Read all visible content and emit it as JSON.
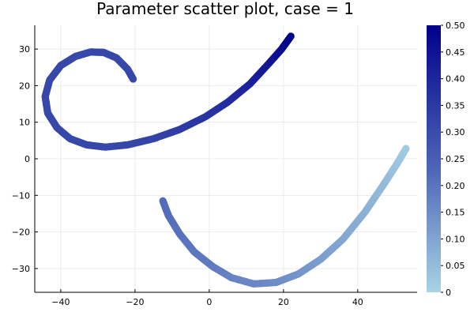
{
  "chart_data": {
    "type": "scatter",
    "title": "Parameter scatter plot, case = 1",
    "xlabel": "",
    "ylabel": "",
    "xlim": [
      -47,
      56
    ],
    "ylim": [
      -36.5,
      36.5
    ],
    "xticks": [
      -40,
      -20,
      0,
      20,
      40
    ],
    "yticks": [
      -30,
      -20,
      -10,
      0,
      10,
      20,
      30
    ],
    "xtick_labels": [
      "−40",
      "−20",
      "0",
      "20",
      "40"
    ],
    "ytick_labels": [
      "−30",
      "−20",
      "−10",
      "0",
      "10",
      "20",
      "30"
    ],
    "grid": true,
    "colorbar": {
      "range": [
        0,
        0.5
      ],
      "ticks": [
        0,
        0.05,
        0.1,
        0.15,
        0.2,
        0.25,
        0.3,
        0.35,
        0.4,
        0.45,
        0.5
      ],
      "tick_labels": [
        "0",
        "0.05",
        "0.10",
        "0.15",
        "0.20",
        "0.25",
        "0.30",
        "0.35",
        "0.40",
        "0.45",
        "0.50"
      ],
      "color_low": "#A8D4E4",
      "color_mid": "#5068B8",
      "color_high": "#00008B"
    },
    "series": [
      {
        "points": [
          {
            "x": -20.5,
            "y": 21.8,
            "c": 0.31
          },
          {
            "x": -22.0,
            "y": 24.5,
            "c": 0.31
          },
          {
            "x": -25.0,
            "y": 27.6,
            "c": 0.31
          },
          {
            "x": -28.5,
            "y": 29.1,
            "c": 0.31
          },
          {
            "x": -32.0,
            "y": 29.2,
            "c": 0.31
          },
          {
            "x": -36.0,
            "y": 28.0,
            "c": 0.31
          },
          {
            "x": -40.0,
            "y": 25.5,
            "c": 0.31
          },
          {
            "x": -43.0,
            "y": 21.5,
            "c": 0.31
          },
          {
            "x": -44.2,
            "y": 17.0,
            "c": 0.31
          },
          {
            "x": -43.5,
            "y": 12.5,
            "c": 0.31
          },
          {
            "x": -41.0,
            "y": 8.5,
            "c": 0.31
          },
          {
            "x": -37.5,
            "y": 5.5,
            "c": 0.31
          },
          {
            "x": -33.0,
            "y": 3.8,
            "c": 0.31
          },
          {
            "x": -28.0,
            "y": 3.2,
            "c": 0.31
          },
          {
            "x": -22.0,
            "y": 3.8,
            "c": 0.315
          },
          {
            "x": -15.0,
            "y": 5.5,
            "c": 0.32
          },
          {
            "x": -8.0,
            "y": 8.0,
            "c": 0.34
          },
          {
            "x": -1.0,
            "y": 11.5,
            "c": 0.36
          },
          {
            "x": 5.0,
            "y": 15.5,
            "c": 0.38
          },
          {
            "x": 11.0,
            "y": 20.5,
            "c": 0.41
          },
          {
            "x": 16.0,
            "y": 26.0,
            "c": 0.44
          },
          {
            "x": 19.5,
            "y": 30.0,
            "c": 0.47
          },
          {
            "x": 22.0,
            "y": 33.5,
            "c": 0.5
          }
        ]
      },
      {
        "points": [
          {
            "x": -12.5,
            "y": -11.5,
            "c": 0.22
          },
          {
            "x": -11.0,
            "y": -15.5,
            "c": 0.215
          },
          {
            "x": -8.0,
            "y": -20.5,
            "c": 0.205
          },
          {
            "x": -4.0,
            "y": -25.5,
            "c": 0.195
          },
          {
            "x": 1.0,
            "y": -29.5,
            "c": 0.185
          },
          {
            "x": 6.0,
            "y": -32.5,
            "c": 0.17
          },
          {
            "x": 12.0,
            "y": -34.2,
            "c": 0.16
          },
          {
            "x": 18.0,
            "y": -33.8,
            "c": 0.15
          },
          {
            "x": 24.0,
            "y": -31.5,
            "c": 0.135
          },
          {
            "x": 30.0,
            "y": -27.5,
            "c": 0.115
          },
          {
            "x": 36.0,
            "y": -22.0,
            "c": 0.095
          },
          {
            "x": 42.0,
            "y": -14.5,
            "c": 0.075
          },
          {
            "x": 47.0,
            "y": -7.0,
            "c": 0.055
          },
          {
            "x": 50.5,
            "y": -1.5,
            "c": 0.035
          },
          {
            "x": 53.0,
            "y": 2.8,
            "c": 0.02
          }
        ]
      }
    ]
  }
}
